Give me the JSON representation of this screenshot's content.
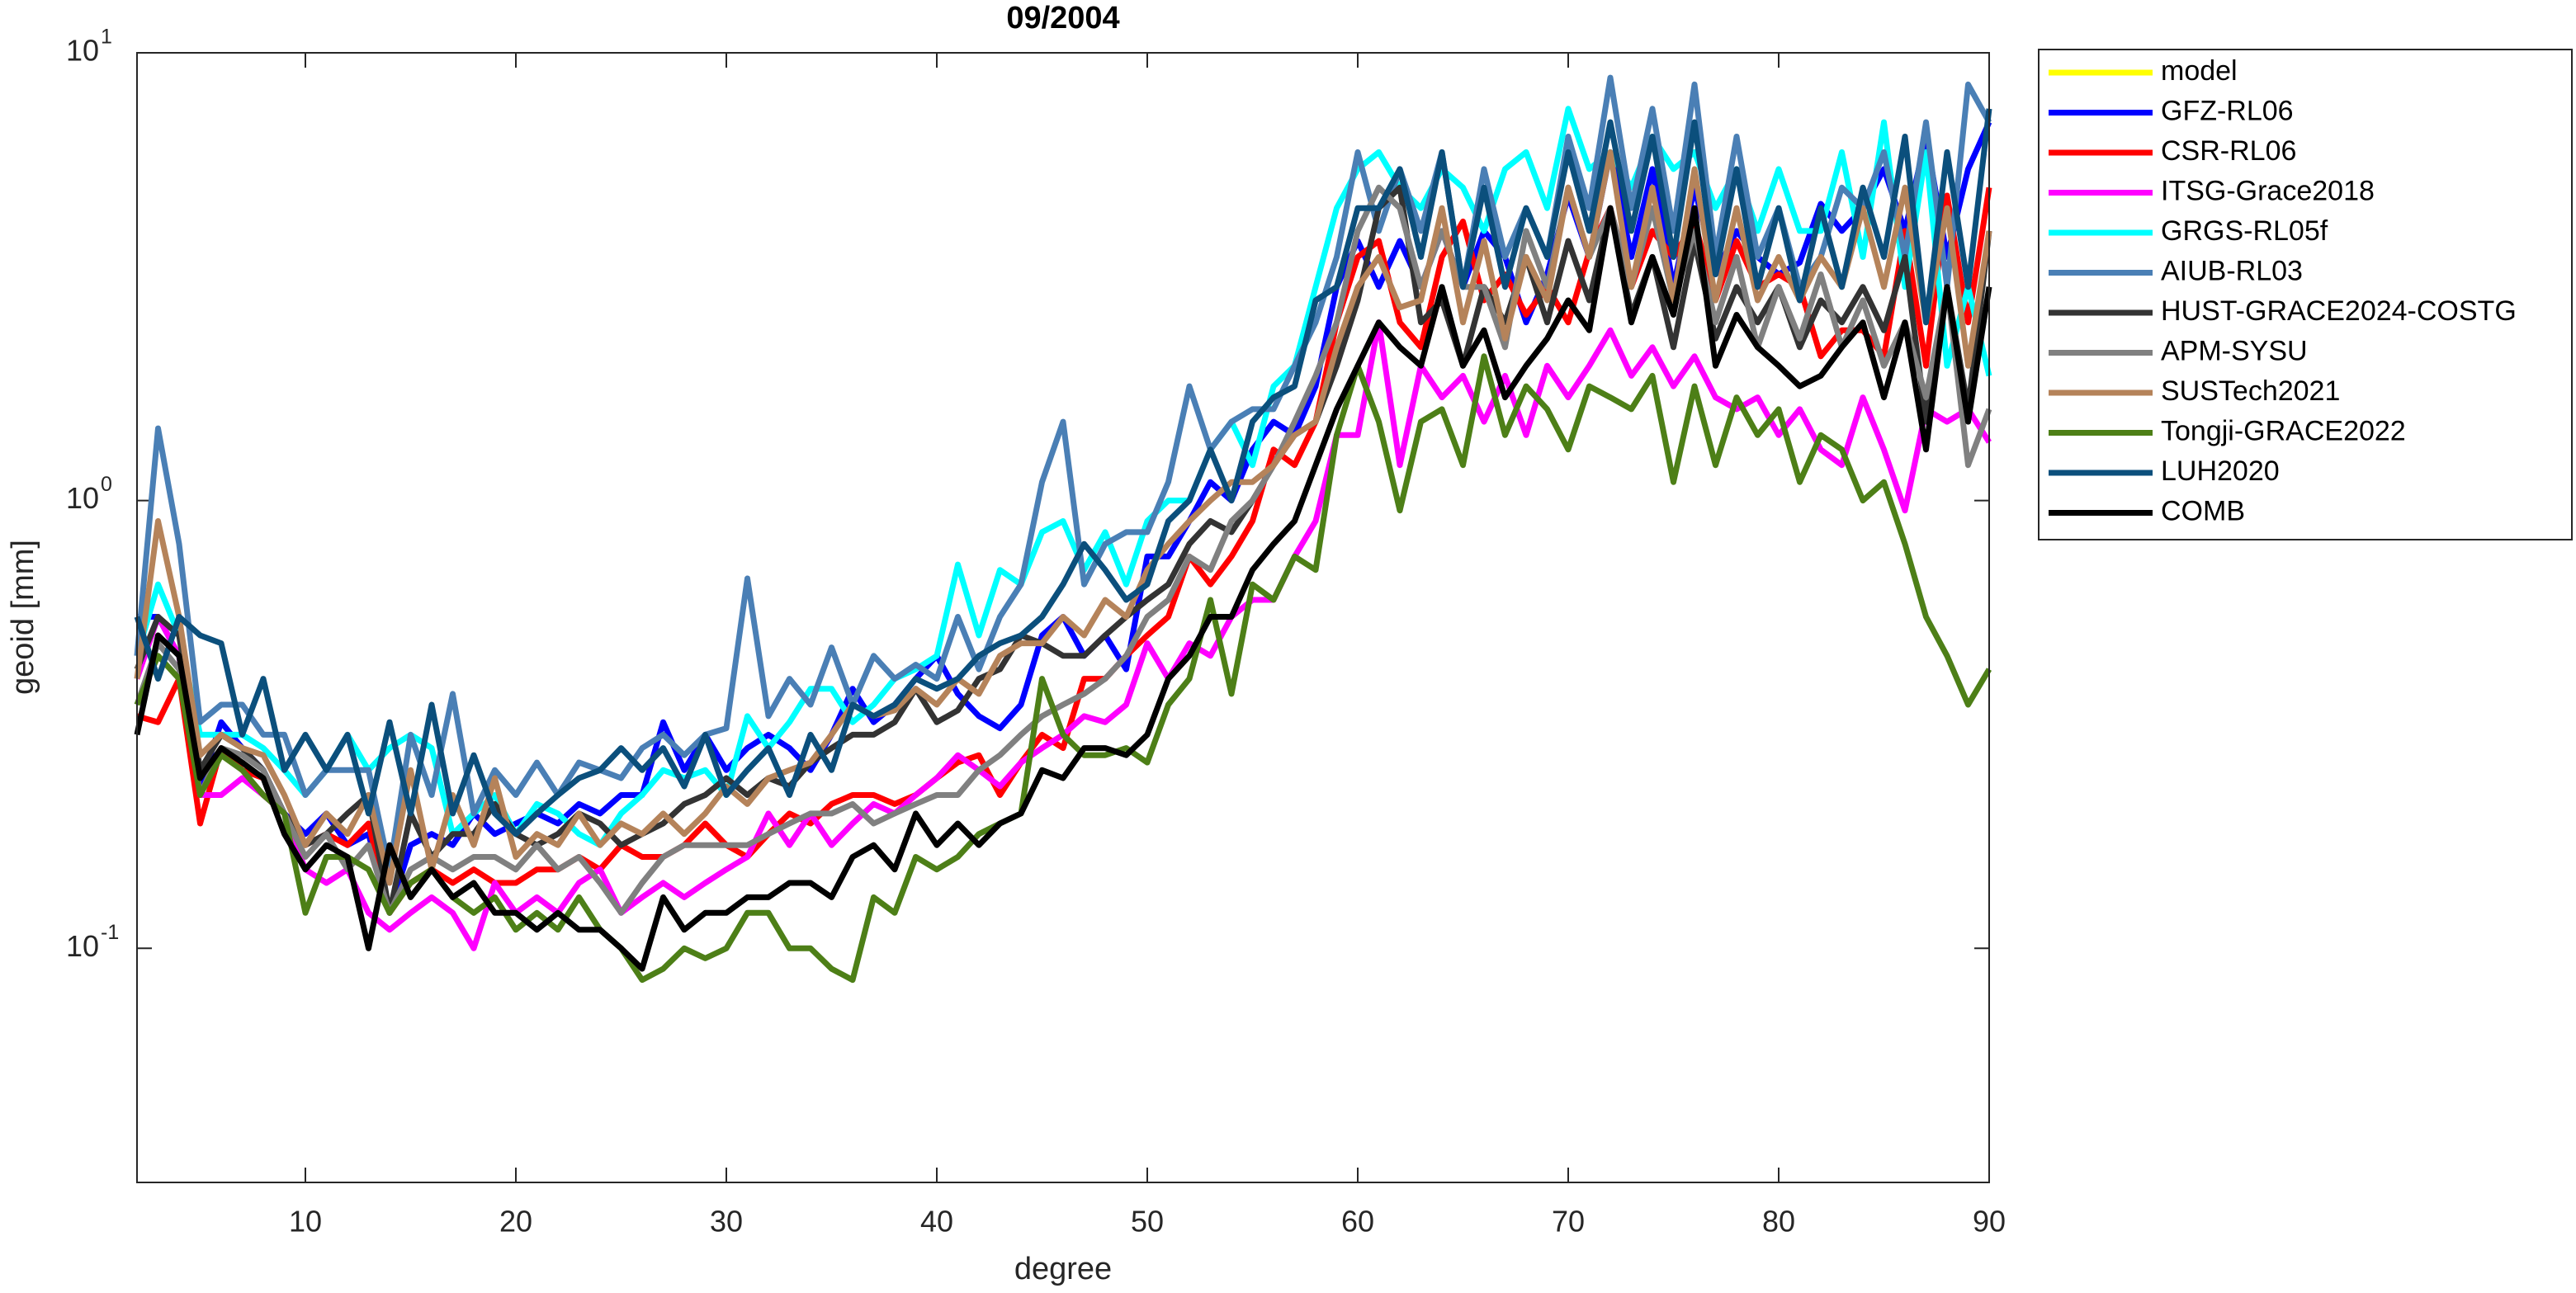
{
  "chart_data": {
    "type": "line",
    "title": "09/2004",
    "xlabel": "degree",
    "ylabel": "geoid [mm]",
    "x": [
      2,
      3,
      4,
      5,
      6,
      7,
      8,
      9,
      10,
      11,
      12,
      13,
      14,
      15,
      16,
      17,
      18,
      19,
      20,
      21,
      22,
      23,
      24,
      25,
      26,
      27,
      28,
      29,
      30,
      31,
      32,
      33,
      34,
      35,
      36,
      37,
      38,
      39,
      40,
      41,
      42,
      43,
      44,
      45,
      46,
      47,
      48,
      49,
      50,
      51,
      52,
      53,
      54,
      55,
      56,
      57,
      58,
      59,
      60,
      61,
      62,
      63,
      64,
      65,
      66,
      67,
      68,
      69,
      70,
      71,
      72,
      73,
      74,
      75,
      76,
      77,
      78,
      79,
      80,
      81,
      82,
      83,
      84,
      85,
      86,
      87,
      88,
      89,
      90
    ],
    "xlim": [
      2,
      90
    ],
    "xticks": [
      10,
      20,
      30,
      40,
      50,
      60,
      70,
      80,
      90
    ],
    "ylim": [
      0.03,
      10
    ],
    "log_y": true,
    "yticks": [
      {
        "value": 0.1,
        "label": "10",
        "exponent": "-1"
      },
      {
        "value": 1,
        "label": "10",
        "exponent": "0"
      },
      {
        "value": 10,
        "label": "10",
        "exponent": "1"
      }
    ],
    "legend": "outside-right",
    "series": [
      {
        "name": "model",
        "color": "#ffff00",
        "values": [
          null,
          null,
          null,
          null,
          null,
          null,
          null,
          null,
          null,
          null,
          null,
          null,
          null,
          null,
          null,
          null,
          null,
          null,
          null,
          null,
          null,
          null,
          null,
          null,
          null,
          null,
          null,
          null,
          null,
          null,
          null,
          null,
          null,
          null,
          null,
          null,
          null,
          null,
          null,
          null,
          null,
          null,
          null,
          null,
          null,
          null,
          null,
          null,
          null,
          null,
          null,
          null,
          null,
          null,
          null,
          null,
          null,
          null,
          null,
          null,
          null,
          null,
          null,
          null,
          null,
          null,
          null,
          null,
          null,
          null,
          null,
          null,
          null,
          null,
          null,
          null,
          null,
          null,
          null,
          null,
          null,
          null,
          null,
          null,
          null,
          null,
          null,
          null,
          null
        ]
      },
      {
        "name": "GFZ-RL06",
        "color": "#0000ff",
        "values": [
          0.55,
          0.55,
          0.45,
          0.23,
          0.32,
          0.28,
          0.25,
          0.2,
          0.18,
          0.2,
          0.17,
          0.18,
          0.12,
          0.17,
          0.18,
          0.17,
          0.2,
          0.18,
          0.19,
          0.2,
          0.19,
          0.21,
          0.2,
          0.22,
          0.22,
          0.32,
          0.25,
          0.3,
          0.25,
          0.28,
          0.3,
          0.28,
          0.25,
          0.3,
          0.38,
          0.32,
          0.35,
          0.4,
          0.45,
          0.37,
          0.33,
          0.31,
          0.35,
          0.5,
          0.55,
          0.45,
          0.5,
          0.42,
          0.75,
          0.75,
          0.9,
          1.1,
          1.0,
          1.3,
          1.5,
          1.4,
          1.8,
          3.0,
          3.8,
          3.0,
          3.8,
          3.0,
          4.0,
          3.0,
          4.0,
          3.5,
          2.5,
          3.2,
          4.8,
          3.5,
          6.0,
          3.5,
          5.5,
          3.0,
          5.0,
          3.2,
          4.0,
          3.5,
          3.2,
          3.4,
          4.6,
          4.0,
          4.5,
          5.5,
          4.0,
          6.5,
          3.5,
          5.5,
          7.0
        ]
      },
      {
        "name": "CSR-RL06",
        "color": "#ff0000",
        "values": [
          0.33,
          0.32,
          0.4,
          0.19,
          0.28,
          0.25,
          0.24,
          0.2,
          0.17,
          0.18,
          0.17,
          0.19,
          0.12,
          0.14,
          0.15,
          0.14,
          0.15,
          0.14,
          0.14,
          0.15,
          0.15,
          0.16,
          0.15,
          0.17,
          0.16,
          0.16,
          0.17,
          0.19,
          0.17,
          0.16,
          0.18,
          0.2,
          0.19,
          0.21,
          0.22,
          0.22,
          0.21,
          0.22,
          0.24,
          0.26,
          0.27,
          0.22,
          0.26,
          0.3,
          0.28,
          0.4,
          0.4,
          0.45,
          0.5,
          0.55,
          0.75,
          0.65,
          0.75,
          0.9,
          1.3,
          1.2,
          1.5,
          2.5,
          3.5,
          3.8,
          2.5,
          2.2,
          3.5,
          4.2,
          2.8,
          3.2,
          2.6,
          3.0,
          2.5,
          3.6,
          4.5,
          3.0,
          4.0,
          3.5,
          4.2,
          2.8,
          3.8,
          3.0,
          3.2,
          3.0,
          2.1,
          2.4,
          2.4,
          2.1,
          4.0,
          2.0,
          4.8,
          2.5,
          5.0
        ]
      },
      {
        "name": "ITSG-Grace2018",
        "color": "#ff00ff",
        "values": [
          0.4,
          0.55,
          0.45,
          0.22,
          0.22,
          0.24,
          0.22,
          0.2,
          0.15,
          0.14,
          0.15,
          0.12,
          0.11,
          0.12,
          0.13,
          0.12,
          0.1,
          0.14,
          0.12,
          0.13,
          0.12,
          0.14,
          0.15,
          0.12,
          0.13,
          0.14,
          0.13,
          0.14,
          0.15,
          0.16,
          0.2,
          0.17,
          0.2,
          0.17,
          0.19,
          0.21,
          0.2,
          0.22,
          0.24,
          0.27,
          0.25,
          0.23,
          0.26,
          0.28,
          0.3,
          0.33,
          0.32,
          0.35,
          0.48,
          0.4,
          0.48,
          0.45,
          0.55,
          0.6,
          0.6,
          0.75,
          0.9,
          1.4,
          1.4,
          2.5,
          1.2,
          2.0,
          1.7,
          1.9,
          1.5,
          1.9,
          1.4,
          2.0,
          1.7,
          2.0,
          2.4,
          1.9,
          2.2,
          1.8,
          2.1,
          1.7,
          1.6,
          1.7,
          1.4,
          1.6,
          1.3,
          1.2,
          1.7,
          1.3,
          0.95,
          1.6,
          1.5,
          1.6,
          1.35
        ]
      },
      {
        "name": "GRGS-RL05f",
        "color": "#00ffff",
        "values": [
          0.45,
          0.65,
          0.5,
          0.3,
          0.3,
          0.3,
          0.28,
          0.25,
          0.22,
          0.25,
          0.3,
          0.25,
          0.28,
          0.3,
          0.28,
          0.18,
          0.2,
          0.22,
          0.18,
          0.21,
          0.2,
          0.18,
          0.17,
          0.2,
          0.22,
          0.25,
          0.24,
          0.25,
          0.22,
          0.33,
          0.28,
          0.32,
          0.38,
          0.38,
          0.32,
          0.35,
          0.4,
          0.42,
          0.45,
          0.72,
          0.5,
          0.7,
          0.65,
          0.85,
          0.9,
          0.7,
          0.85,
          0.65,
          0.9,
          1.0,
          1.0,
          1.3,
          1.5,
          1.2,
          1.8,
          2.0,
          3.0,
          4.5,
          5.5,
          6.0,
          5.0,
          4.5,
          5.5,
          5.0,
          4.0,
          5.5,
          6.0,
          4.5,
          7.5,
          5.5,
          6.0,
          5.0,
          6.5,
          5.5,
          6.0,
          4.5,
          5.5,
          4.0,
          5.5,
          4.0,
          4.0,
          6.0,
          3.5,
          7.0,
          3.0,
          6.0,
          2.0,
          3.0,
          1.9
        ]
      },
      {
        "name": "AIUB-RL03",
        "color": "#4a7fb5",
        "values": [
          0.45,
          1.45,
          0.8,
          0.32,
          0.35,
          0.35,
          0.3,
          0.3,
          0.22,
          0.25,
          0.25,
          0.25,
          0.15,
          0.3,
          0.22,
          0.37,
          0.2,
          0.25,
          0.22,
          0.26,
          0.22,
          0.26,
          0.25,
          0.24,
          0.28,
          0.3,
          0.27,
          0.3,
          0.31,
          0.67,
          0.33,
          0.4,
          0.35,
          0.47,
          0.35,
          0.45,
          0.4,
          0.43,
          0.4,
          0.55,
          0.42,
          0.55,
          0.65,
          1.1,
          1.5,
          0.65,
          0.8,
          0.85,
          0.85,
          1.1,
          1.8,
          1.3,
          1.5,
          1.6,
          1.6,
          2.0,
          2.5,
          3.5,
          6.0,
          4.0,
          5.5,
          4.0,
          6.0,
          3.0,
          5.5,
          3.5,
          4.5,
          3.5,
          6.5,
          4.5,
          8.8,
          4.5,
          7.5,
          4.0,
          8.5,
          3.5,
          6.5,
          3.5,
          4.5,
          3.0,
          3.5,
          5.0,
          4.5,
          6.0,
          3.5,
          7.0,
          3.0,
          8.5,
          7.0
        ]
      },
      {
        "name": "HUST-GRACE2024-COSTG",
        "color": "#333333",
        "values": [
          0.42,
          0.55,
          0.5,
          0.25,
          0.3,
          0.28,
          0.25,
          0.2,
          0.17,
          0.18,
          0.2,
          0.22,
          0.12,
          0.2,
          0.16,
          0.18,
          0.18,
          0.21,
          0.18,
          0.17,
          0.18,
          0.2,
          0.19,
          0.17,
          0.18,
          0.19,
          0.21,
          0.22,
          0.24,
          0.22,
          0.24,
          0.23,
          0.26,
          0.28,
          0.3,
          0.3,
          0.32,
          0.38,
          0.32,
          0.34,
          0.4,
          0.42,
          0.5,
          0.48,
          0.45,
          0.45,
          0.5,
          0.55,
          0.6,
          0.65,
          0.8,
          0.9,
          0.85,
          1.0,
          1.2,
          1.4,
          1.5,
          2.0,
          2.8,
          4.5,
          5.0,
          2.5,
          2.8,
          2.0,
          3.0,
          2.5,
          3.5,
          2.5,
          3.8,
          2.8,
          4.5,
          2.6,
          3.5,
          2.2,
          3.8,
          2.3,
          3.0,
          2.5,
          3.0,
          2.2,
          2.8,
          2.5,
          3.0,
          2.4,
          3.5,
          1.5,
          3.0,
          1.6,
          4.0
        ]
      },
      {
        "name": "APM-SYSU",
        "color": "#808080",
        "values": [
          0.35,
          0.48,
          0.42,
          0.22,
          0.28,
          0.27,
          0.25,
          0.2,
          0.16,
          0.18,
          0.15,
          0.17,
          0.12,
          0.15,
          0.16,
          0.15,
          0.16,
          0.16,
          0.15,
          0.17,
          0.15,
          0.16,
          0.14,
          0.12,
          0.14,
          0.16,
          0.17,
          0.17,
          0.17,
          0.17,
          0.18,
          0.19,
          0.2,
          0.2,
          0.21,
          0.19,
          0.2,
          0.21,
          0.22,
          0.22,
          0.25,
          0.27,
          0.3,
          0.33,
          0.35,
          0.37,
          0.4,
          0.45,
          0.55,
          0.6,
          0.75,
          0.7,
          0.9,
          1.0,
          1.2,
          1.5,
          1.9,
          2.5,
          4.0,
          5.0,
          4.5,
          3.0,
          4.0,
          3.0,
          3.0,
          2.2,
          4.0,
          3.0,
          5.0,
          3.5,
          4.5,
          3.0,
          4.5,
          2.8,
          4.0,
          2.5,
          3.5,
          2.2,
          3.0,
          2.3,
          3.2,
          2.2,
          2.8,
          2.0,
          2.5,
          1.7,
          3.0,
          1.2,
          1.6
        ]
      },
      {
        "name": "SUSTech2021",
        "color": "#b5835a",
        "values": [
          0.4,
          0.9,
          0.55,
          0.27,
          0.3,
          0.28,
          0.27,
          0.22,
          0.17,
          0.2,
          0.18,
          0.22,
          0.14,
          0.25,
          0.15,
          0.22,
          0.17,
          0.24,
          0.16,
          0.18,
          0.17,
          0.2,
          0.17,
          0.19,
          0.18,
          0.2,
          0.18,
          0.2,
          0.23,
          0.21,
          0.24,
          0.25,
          0.26,
          0.3,
          0.35,
          0.33,
          0.34,
          0.38,
          0.35,
          0.4,
          0.37,
          0.45,
          0.48,
          0.48,
          0.55,
          0.5,
          0.6,
          0.55,
          0.7,
          0.8,
          0.9,
          1.0,
          1.1,
          1.1,
          1.2,
          1.4,
          1.5,
          2.2,
          3.0,
          3.5,
          2.7,
          2.8,
          4.5,
          2.5,
          3.8,
          2.3,
          3.5,
          2.8,
          5.0,
          3.5,
          6.0,
          3.0,
          5.0,
          2.8,
          5.5,
          2.8,
          4.5,
          2.8,
          3.5,
          2.8,
          3.5,
          3.0,
          4.5,
          3.0,
          5.0,
          2.5,
          4.5,
          2.0,
          4.0
        ]
      },
      {
        "name": "Tongji-GRACE2022",
        "color": "#4d7f17",
        "values": [
          0.35,
          0.45,
          0.4,
          0.22,
          0.27,
          0.25,
          0.22,
          0.2,
          0.12,
          0.16,
          0.16,
          0.15,
          0.12,
          0.14,
          0.15,
          0.13,
          0.12,
          0.13,
          0.11,
          0.12,
          0.11,
          0.13,
          0.11,
          0.1,
          0.085,
          0.09,
          0.1,
          0.095,
          0.1,
          0.12,
          0.12,
          0.1,
          0.1,
          0.09,
          0.085,
          0.13,
          0.12,
          0.16,
          0.15,
          0.16,
          0.18,
          0.19,
          0.2,
          0.4,
          0.3,
          0.27,
          0.27,
          0.28,
          0.26,
          0.35,
          0.4,
          0.6,
          0.37,
          0.65,
          0.6,
          0.75,
          0.7,
          1.4,
          2.0,
          1.5,
          0.95,
          1.5,
          1.6,
          1.2,
          2.1,
          1.4,
          1.8,
          1.6,
          1.3,
          1.8,
          1.7,
          1.6,
          1.9,
          1.1,
          1.8,
          1.2,
          1.7,
          1.4,
          1.6,
          1.1,
          1.4,
          1.3,
          1.0,
          1.1,
          0.8,
          0.55,
          0.45,
          0.35,
          0.42
        ]
      },
      {
        "name": "LUH2020",
        "color": "#0b4f7c",
        "values": [
          0.55,
          0.4,
          0.55,
          0.5,
          0.48,
          0.3,
          0.4,
          0.25,
          0.3,
          0.25,
          0.3,
          0.2,
          0.32,
          0.2,
          0.35,
          0.2,
          0.27,
          0.2,
          0.18,
          0.2,
          0.22,
          0.24,
          0.25,
          0.28,
          0.25,
          0.28,
          0.23,
          0.3,
          0.22,
          0.25,
          0.28,
          0.22,
          0.3,
          0.25,
          0.35,
          0.33,
          0.35,
          0.4,
          0.38,
          0.4,
          0.45,
          0.48,
          0.5,
          0.55,
          0.65,
          0.8,
          0.7,
          0.6,
          0.65,
          0.9,
          1.0,
          1.3,
          1.0,
          1.5,
          1.7,
          1.8,
          2.8,
          3.0,
          4.5,
          4.5,
          5.5,
          3.5,
          6.0,
          3.0,
          5.0,
          3.0,
          4.5,
          3.5,
          6.0,
          4.0,
          7.0,
          4.0,
          6.5,
          3.5,
          7.0,
          3.2,
          5.5,
          3.0,
          4.5,
          2.8,
          4.5,
          3.0,
          5.0,
          3.5,
          6.5,
          2.5,
          6.0,
          3.0,
          7.5
        ]
      },
      {
        "name": "COMB",
        "color": "#000000",
        "values": [
          0.3,
          0.5,
          0.45,
          0.24,
          0.28,
          0.26,
          0.24,
          0.18,
          0.15,
          0.17,
          0.16,
          0.1,
          0.17,
          0.13,
          0.15,
          0.13,
          0.14,
          0.12,
          0.12,
          0.11,
          0.12,
          0.11,
          0.11,
          0.1,
          0.09,
          0.13,
          0.11,
          0.12,
          0.12,
          0.13,
          0.13,
          0.14,
          0.14,
          0.13,
          0.16,
          0.17,
          0.15,
          0.2,
          0.17,
          0.19,
          0.17,
          0.19,
          0.2,
          0.25,
          0.24,
          0.28,
          0.28,
          0.27,
          0.3,
          0.4,
          0.45,
          0.55,
          0.55,
          0.7,
          0.8,
          0.9,
          1.2,
          1.6,
          2.0,
          2.5,
          2.2,
          2.0,
          3.0,
          2.0,
          2.4,
          1.7,
          2.0,
          2.3,
          2.8,
          2.4,
          4.5,
          2.5,
          3.5,
          2.6,
          4.5,
          2.0,
          2.6,
          2.2,
          2.0,
          1.8,
          1.9,
          2.2,
          2.5,
          1.7,
          2.5,
          1.3,
          3.0,
          1.5,
          3.0
        ]
      }
    ]
  }
}
